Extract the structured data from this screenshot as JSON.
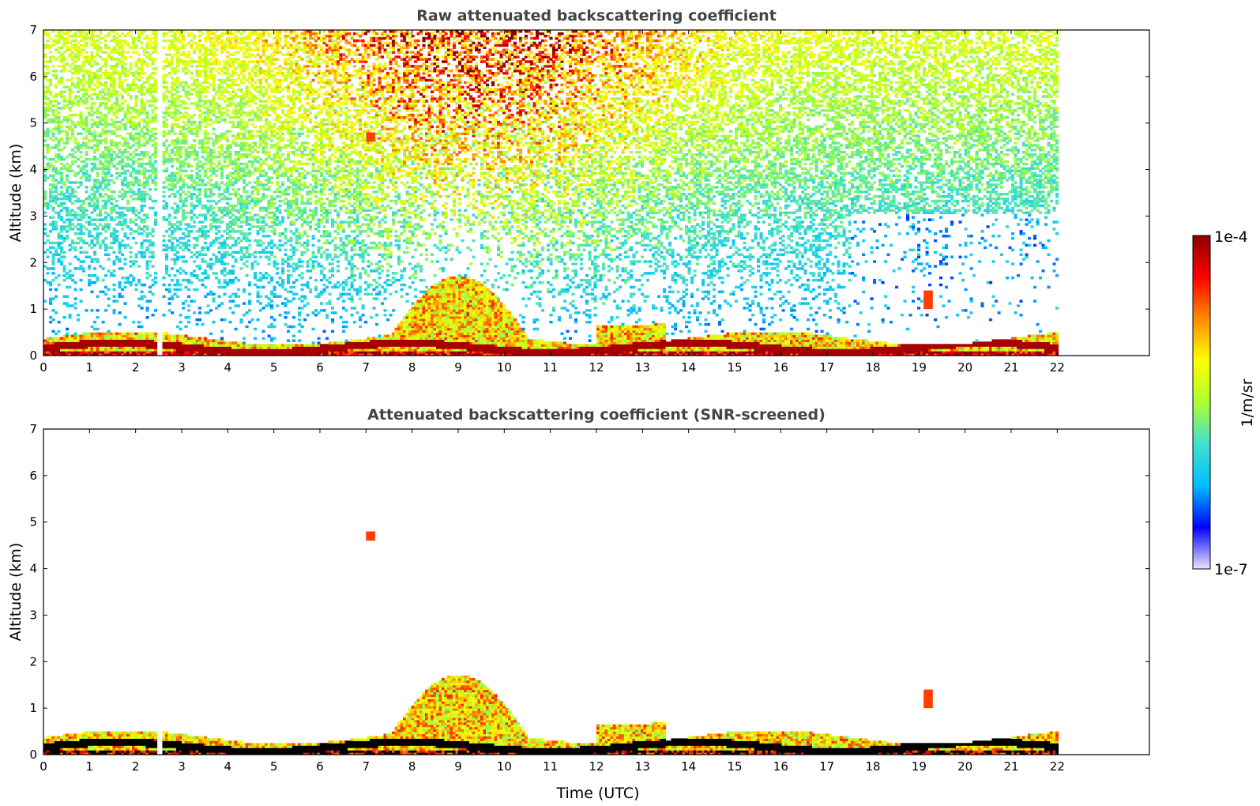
{
  "chart_data": [
    {
      "type": "heatmap",
      "title": "Raw attenuated backscattering coefficient",
      "ylabel": "Altitude (km)",
      "xlabel": "",
      "xlim": [
        0,
        24
      ],
      "ylim": [
        0,
        7
      ],
      "xticks": [
        "0",
        "1",
        "2",
        "3",
        "4",
        "5",
        "6",
        "7",
        "8",
        "9",
        "10",
        "11",
        "12",
        "13",
        "14",
        "15",
        "16",
        "17",
        "18",
        "19",
        "20",
        "21",
        "22"
      ],
      "yticks": [
        "0",
        "1",
        "2",
        "3",
        "4",
        "5",
        "6",
        "7"
      ],
      "data_time_range": [
        0,
        22
      ],
      "gaps": [
        [
          2.45,
          2.55
        ]
      ],
      "layers": [
        {
          "kind": "boundary-layer-aerosol",
          "t_start": 0,
          "t_end": 22,
          "base_km": 0,
          "top_km": 0.5
        },
        {
          "kind": "convective-plumes",
          "t_start": 7.5,
          "t_end": 10.5,
          "base_km": 0,
          "top_km": 2.0
        },
        {
          "kind": "elevated-cloud-fragments",
          "t_start": 7.0,
          "t_end": 7.2,
          "base_km": 4.6,
          "top_km": 4.8
        },
        {
          "kind": "elevated-cloud-fragments",
          "t_start": 19.1,
          "t_end": 19.3,
          "base_km": 1.0,
          "top_km": 1.4
        }
      ]
    },
    {
      "type": "heatmap",
      "title": "Attenuated backscattering coefficient (SNR-screened)",
      "ylabel": "Altitude (km)",
      "xlabel": "Time (UTC)",
      "xlim": [
        0,
        24
      ],
      "ylim": [
        0,
        7
      ],
      "xticks": [
        "0",
        "1",
        "2",
        "3",
        "4",
        "5",
        "6",
        "7",
        "8",
        "9",
        "10",
        "11",
        "12",
        "13",
        "14",
        "15",
        "16",
        "17",
        "18",
        "19",
        "20",
        "21",
        "22"
      ],
      "yticks": [
        "0",
        "1",
        "2",
        "3",
        "4",
        "5",
        "6",
        "7"
      ],
      "data_time_range": [
        0,
        22
      ],
      "gaps": [
        [
          2.45,
          2.55
        ]
      ],
      "layers": [
        {
          "kind": "boundary-layer-aerosol",
          "t_start": 0,
          "t_end": 22,
          "base_km": 0,
          "top_km": 0.5
        },
        {
          "kind": "convective-plumes",
          "t_start": 7.5,
          "t_end": 10.5,
          "base_km": 0,
          "top_km": 2.0
        },
        {
          "kind": "elevated-cloud-fragments",
          "t_start": 7.0,
          "t_end": 7.2,
          "base_km": 4.6,
          "top_km": 4.8
        },
        {
          "kind": "elevated-cloud-fragments",
          "t_start": 19.1,
          "t_end": 19.3,
          "base_km": 1.0,
          "top_km": 1.4
        }
      ]
    }
  ],
  "colorbar": {
    "max_label": "1e-4",
    "min_label": "1e-7",
    "unit_label": "1/m/sr",
    "colormap": "jet",
    "colors": [
      "#e6e6fa",
      "#0000ff",
      "#00bfff",
      "#40e0d0",
      "#adff2f",
      "#ffff00",
      "#ff8c00",
      "#ff0000",
      "#8b0000"
    ]
  }
}
